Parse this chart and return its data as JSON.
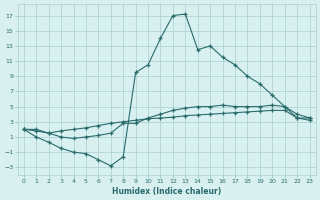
{
  "xlabel": "Humidex (Indice chaleur)",
  "x": [
    0,
    1,
    2,
    3,
    4,
    5,
    6,
    7,
    8,
    9,
    10,
    11,
    12,
    13,
    14,
    15,
    16,
    17,
    18,
    19,
    20,
    21,
    22,
    23
  ],
  "line1": [
    2.0,
    1.0,
    0.3,
    -0.5,
    -1.0,
    -1.2,
    -2.0,
    -2.8,
    -1.6,
    9.5,
    10.5,
    14.0,
    17.0,
    17.2,
    12.5,
    13.0,
    11.5,
    10.5,
    9.0,
    8.0,
    6.5,
    5.0,
    3.5,
    3.5
  ],
  "line2": [
    2.0,
    1.8,
    1.5,
    1.0,
    0.8,
    1.0,
    1.2,
    1.5,
    2.8,
    2.8,
    3.5,
    4.0,
    4.5,
    4.8,
    5.0,
    5.0,
    5.2,
    5.0,
    5.0,
    5.0,
    5.2,
    5.0,
    4.0,
    3.5
  ],
  "line3": [
    2.0,
    2.0,
    1.5,
    1.8,
    2.0,
    2.2,
    2.5,
    2.8,
    3.0,
    3.2,
    3.4,
    3.5,
    3.6,
    3.8,
    3.9,
    4.0,
    4.1,
    4.2,
    4.3,
    4.4,
    4.5,
    4.5,
    3.5,
    3.2
  ],
  "line_color": "#2a6b6b",
  "bg_color": "#d8f0f0",
  "grid_color": "#a8cece",
  "ylim": [
    -4.0,
    18.5
  ],
  "yticks": [
    -3,
    -1,
    1,
    3,
    5,
    7,
    9,
    11,
    13,
    15,
    17
  ],
  "xticks": [
    0,
    1,
    2,
    3,
    4,
    5,
    6,
    7,
    8,
    9,
    10,
    11,
    12,
    13,
    14,
    15,
    16,
    17,
    18,
    19,
    20,
    21,
    22,
    23
  ]
}
